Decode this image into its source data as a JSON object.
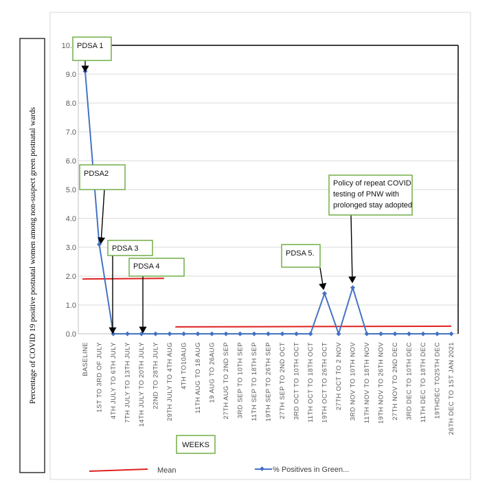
{
  "chart_data": {
    "type": "line",
    "title": "",
    "xlabel": "WEEKS",
    "ylabel": "Percentage of COVID 19 positive postnatal women among non-suspect green postnatal wards",
    "ylim": [
      0,
      10
    ],
    "yticks": [
      "0.0",
      "1.0",
      "2.0",
      "3.0",
      "4.0",
      "5.0",
      "6.0",
      "7.0",
      "8.0",
      "9.0",
      "10.0"
    ],
    "grid": true,
    "legend_position": "bottom",
    "categories": [
      "BASELINE",
      "1ST  TO 3RD OF JULY",
      "4TH JULY TO 6TH JULY",
      "7TH JULY TO 13TH JULY",
      "14TH JULY TO 20TH JULY",
      "22ND TO 28TH JULY",
      "29TH JULY TO 4TH AUG",
      "4TH TO10AUG",
      "11TH AUG TO 18 AUG",
      "19 AUG TO 26AUG",
      "27TH AUG TO 2ND SEP",
      "3RD SEP TO 10TH SEP",
      "11TH SEP TO 18TH SEP",
      "19TH SEP TO 26TH SEP",
      "27TH SEP TO 2ND OCT",
      "3RD OCT TO 10TH OCT",
      "11TH OCT TO 18TH OCT",
      "19TH OCT TO 26TH OCT",
      "27TH OCT TO 2 NOV",
      "3RD NOV TO 10TH NOV",
      "11TH NOV TO 18TH NOV",
      "19TH NOV TO 26TH NOV",
      "27TH NOV TO 2ND DEC",
      "3RD DEC TO 10TH DEC",
      "11TH DEC TO 18TH DEC",
      "19THDEC TO25TH DEC",
      "26TH DEC TO 1ST JAN 2021"
    ],
    "series": [
      {
        "name": "% Positives in Green...",
        "color": "#4472c4",
        "values": [
          9.1,
          3.1,
          0,
          0,
          0,
          0,
          0,
          0,
          0,
          0,
          0,
          0,
          0,
          0,
          0,
          0,
          0,
          1.4,
          0,
          1.6,
          0,
          0,
          0,
          0,
          0,
          0,
          0
        ]
      },
      {
        "name": "Mean",
        "color": "#e02020",
        "segments": [
          {
            "from": 0,
            "to": 5.6,
            "value": 1.9
          },
          {
            "from": 6.6,
            "to": 26,
            "value": 0.24
          }
        ]
      }
    ],
    "annotations": [
      {
        "text": "PDSA 1",
        "index": 0
      },
      {
        "text": "PDSA2",
        "index": 1
      },
      {
        "text": "PDSA 3",
        "index": 2
      },
      {
        "text": "PDSA 4",
        "index": 4
      },
      {
        "text": "PDSA 5.",
        "index": 17
      },
      {
        "text": "Policy of repeat COVID testing of PNW with prolonged stay adopted",
        "lines": [
          "Policy of repeat COVID",
          "testing of PNW with",
          "prolonged stay adopted"
        ],
        "index": 19
      }
    ],
    "legend": [
      "Mean",
      "% Positives in Green..."
    ]
  }
}
